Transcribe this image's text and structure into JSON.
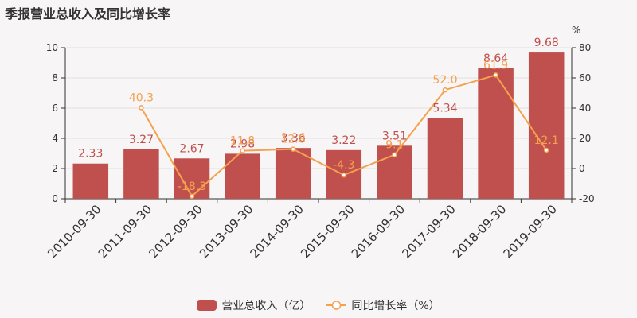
{
  "title": "季报营业总收入及同比增长率",
  "colors": {
    "bar": "#c0504d",
    "line": "#f4a14e",
    "axis": "#333333",
    "grid": "#e0e0e0",
    "background": "#f7f5f6"
  },
  "chart_data": {
    "type": "bar",
    "title": "季报营业总收入及同比增长率",
    "categories": [
      "2010-09-30",
      "2011-09-30",
      "2012-09-30",
      "2013-09-30",
      "2014-09-30",
      "2015-09-30",
      "2016-09-30",
      "2017-09-30",
      "2018-09-30",
      "2019-09-30"
    ],
    "series": [
      {
        "name": "营业总收入（亿）",
        "type": "bar",
        "axis": "left",
        "values": [
          2.33,
          3.27,
          2.67,
          2.98,
          3.36,
          3.22,
          3.51,
          5.34,
          8.64,
          9.68
        ],
        "labels": [
          "2.33",
          "3.27",
          "2.67",
          "2.98",
          "3.36",
          "3.22",
          "3.51",
          "5.34",
          "8.64",
          "9.68"
        ]
      },
      {
        "name": "同比增长率（%）",
        "type": "line",
        "axis": "right",
        "values": [
          null,
          40.3,
          -18.3,
          11.8,
          12.8,
          -4.3,
          9.1,
          52.0,
          61.9,
          12.1
        ],
        "labels": [
          "",
          "40.3",
          "-18.3",
          "11.8",
          "12.8",
          "-4.3",
          "9.1",
          "52.0",
          "61.9",
          "12.1"
        ]
      }
    ],
    "y_left": {
      "min": 0,
      "max": 10,
      "ticks": [
        "0",
        "2",
        "4",
        "6",
        "8",
        "10"
      ]
    },
    "y_right": {
      "min": -20,
      "max": 80,
      "unit": "%",
      "ticks": [
        "-20",
        "0",
        "20",
        "40",
        "60",
        "80"
      ]
    },
    "grid": true,
    "legend": "bottom"
  }
}
